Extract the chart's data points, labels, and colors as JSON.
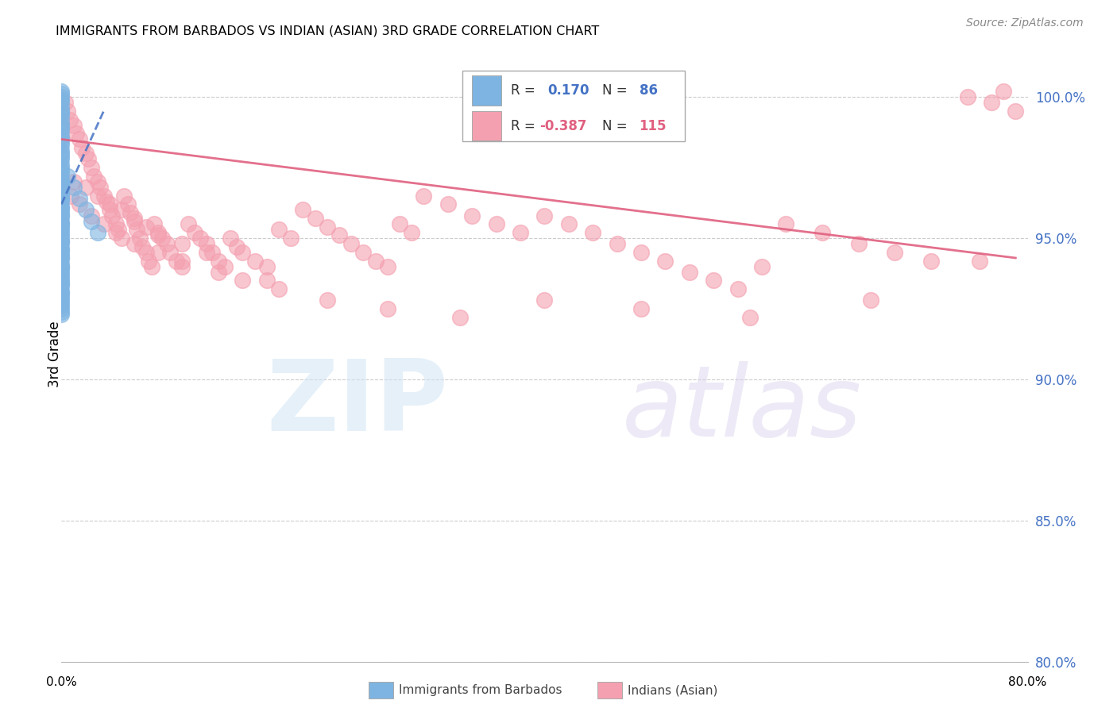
{
  "title": "IMMIGRANTS FROM BARBADOS VS INDIAN (ASIAN) 3RD GRADE CORRELATION CHART",
  "source": "Source: ZipAtlas.com",
  "ylabel": "3rd Grade",
  "xmin": 0.0,
  "xmax": 80.0,
  "ymin": 80.0,
  "ymax": 101.8,
  "r_barbados": 0.17,
  "n_barbados": 86,
  "r_indian": -0.387,
  "n_indian": 115,
  "color_barbados": "#7EB4E2",
  "color_indian": "#F4A0B0",
  "line_color_barbados": "#4472C4",
  "line_color_indian": "#E06080",
  "yticks": [
    80.0,
    85.0,
    90.0,
    95.0,
    100.0
  ],
  "ytick_labels": [
    "80.0%",
    "85.0%",
    "90.0%",
    "95.0%",
    "100.0%"
  ],
  "grid_color": "#cccccc",
  "barbados_x": [
    0.0,
    0.0,
    0.0,
    0.0,
    0.0,
    0.0,
    0.0,
    0.0,
    0.0,
    0.0,
    0.0,
    0.0,
    0.0,
    0.0,
    0.0,
    0.0,
    0.0,
    0.0,
    0.0,
    0.0,
    0.0,
    0.0,
    0.0,
    0.0,
    0.0,
    0.0,
    0.0,
    0.0,
    0.0,
    0.0,
    0.0,
    0.0,
    0.0,
    0.0,
    0.0,
    0.0,
    0.0,
    0.0,
    0.0,
    0.0,
    0.0,
    0.0,
    0.0,
    0.0,
    0.0,
    0.0,
    0.0,
    0.0,
    0.0,
    0.0,
    0.0,
    0.0,
    0.0,
    0.0,
    0.0,
    0.0,
    0.0,
    0.0,
    0.0,
    0.0,
    0.0,
    0.0,
    0.0,
    0.0,
    0.0,
    0.0,
    0.0,
    0.0,
    0.0,
    0.0,
    0.0,
    0.0,
    0.0,
    0.0,
    0.0,
    0.0,
    0.0,
    0.0,
    0.0,
    0.0,
    0.5,
    1.0,
    1.5,
    2.0,
    2.5,
    3.0
  ],
  "barbados_y": [
    100.2,
    100.0,
    99.8,
    99.5,
    99.3,
    99.0,
    98.8,
    98.5,
    98.3,
    98.0,
    97.8,
    97.5,
    97.3,
    97.0,
    96.8,
    96.5,
    96.3,
    96.0,
    95.8,
    95.5,
    95.3,
    95.0,
    94.8,
    94.5,
    94.3,
    94.0,
    93.8,
    93.5,
    93.3,
    93.0,
    100.1,
    99.9,
    99.6,
    99.4,
    99.1,
    98.9,
    98.6,
    98.4,
    98.1,
    97.9,
    97.6,
    97.4,
    97.1,
    96.9,
    96.6,
    96.4,
    96.1,
    95.9,
    95.6,
    95.4,
    95.1,
    94.9,
    94.6,
    94.4,
    94.1,
    93.9,
    93.6,
    93.4,
    93.1,
    97.0,
    96.7,
    96.4,
    96.1,
    95.8,
    95.5,
    95.2,
    94.9,
    94.6,
    94.3,
    94.0,
    93.7,
    93.4,
    93.1,
    92.9,
    92.8,
    92.7,
    92.6,
    92.5,
    92.4,
    92.3,
    97.2,
    96.8,
    96.4,
    96.0,
    95.6,
    95.2
  ],
  "indian_x": [
    0.3,
    0.5,
    0.7,
    1.0,
    1.2,
    1.5,
    1.7,
    2.0,
    2.2,
    2.5,
    2.7,
    3.0,
    3.2,
    3.5,
    3.7,
    4.0,
    4.2,
    4.5,
    4.7,
    5.0,
    5.2,
    5.5,
    5.7,
    6.0,
    6.2,
    6.5,
    6.7,
    7.0,
    7.2,
    7.5,
    7.7,
    8.0,
    8.3,
    8.7,
    9.0,
    9.5,
    10.0,
    10.5,
    11.0,
    11.5,
    12.0,
    12.5,
    13.0,
    13.5,
    14.0,
    14.5,
    15.0,
    16.0,
    17.0,
    18.0,
    19.0,
    20.0,
    21.0,
    22.0,
    23.0,
    24.0,
    25.0,
    26.0,
    27.0,
    28.0,
    29.0,
    30.0,
    32.0,
    34.0,
    36.0,
    38.0,
    40.0,
    42.0,
    44.0,
    46.0,
    48.0,
    50.0,
    52.0,
    54.0,
    56.0,
    58.0,
    60.0,
    63.0,
    66.0,
    69.0,
    72.0,
    75.0,
    77.0,
    78.0,
    79.0,
    1.0,
    2.0,
    3.0,
    4.0,
    5.0,
    6.0,
    7.0,
    8.0,
    10.0,
    12.0,
    15.0,
    18.0,
    22.0,
    27.0,
    33.0,
    40.0,
    48.0,
    57.0,
    67.0,
    76.0,
    0.8,
    1.5,
    2.5,
    3.5,
    4.5,
    6.0,
    8.0,
    10.0,
    13.0,
    17.0
  ],
  "indian_y": [
    99.8,
    99.5,
    99.2,
    99.0,
    98.7,
    98.5,
    98.2,
    98.0,
    97.8,
    97.5,
    97.2,
    97.0,
    96.8,
    96.5,
    96.3,
    96.0,
    95.8,
    95.5,
    95.3,
    95.0,
    96.5,
    96.2,
    95.9,
    95.6,
    95.3,
    95.0,
    94.7,
    94.5,
    94.2,
    94.0,
    95.5,
    95.2,
    95.0,
    94.8,
    94.5,
    94.2,
    94.0,
    95.5,
    95.2,
    95.0,
    94.8,
    94.5,
    94.2,
    94.0,
    95.0,
    94.7,
    94.5,
    94.2,
    94.0,
    95.3,
    95.0,
    96.0,
    95.7,
    95.4,
    95.1,
    94.8,
    94.5,
    94.2,
    94.0,
    95.5,
    95.2,
    96.5,
    96.2,
    95.8,
    95.5,
    95.2,
    95.8,
    95.5,
    95.2,
    94.8,
    94.5,
    94.2,
    93.8,
    93.5,
    93.2,
    94.0,
    95.5,
    95.2,
    94.8,
    94.5,
    94.2,
    100.0,
    99.8,
    100.2,
    99.5,
    97.0,
    96.8,
    96.5,
    96.2,
    96.0,
    95.7,
    95.4,
    95.1,
    94.8,
    94.5,
    93.5,
    93.2,
    92.8,
    92.5,
    92.2,
    92.8,
    92.5,
    92.2,
    92.8,
    94.2,
    96.5,
    96.2,
    95.8,
    95.5,
    95.2,
    94.8,
    94.5,
    94.2,
    93.8,
    93.5
  ]
}
